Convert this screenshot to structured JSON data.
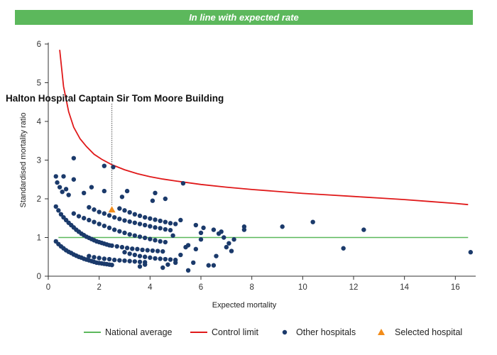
{
  "banner": {
    "text": "In line with expected rate"
  },
  "colors": {
    "banner": "#5cb85c",
    "national_average": "#5cb85c",
    "control_limit": "#e0191a",
    "other_hospitals": "#1b3a6b",
    "selected_hospital": "#f28c1a"
  },
  "chart_data": {
    "type": "scatter",
    "title": "",
    "xlabel": "Expected mortality",
    "ylabel": "Standardised mortality ratio",
    "xlim": [
      0,
      16.8
    ],
    "ylim": [
      0,
      6
    ],
    "x_ticks": [
      0,
      2,
      4,
      6,
      8,
      10,
      12,
      14,
      16
    ],
    "y_ticks": [
      0,
      1,
      2,
      3,
      4,
      5,
      6
    ],
    "grid": false,
    "legend_position": "bottom",
    "annotation": {
      "text": "Halton Hospital Captain Sir Tom Moore Building",
      "x": 2.5,
      "y": 1.72
    },
    "series": [
      {
        "name": "National average",
        "kind": "line",
        "points": [
          [
            0.4,
            1
          ],
          [
            16.5,
            1
          ]
        ]
      },
      {
        "name": "Control limit",
        "kind": "line",
        "points": [
          [
            0.45,
            5.85
          ],
          [
            0.6,
            4.9
          ],
          [
            0.8,
            4.25
          ],
          [
            1.0,
            3.85
          ],
          [
            1.25,
            3.55
          ],
          [
            1.5,
            3.35
          ],
          [
            1.8,
            3.15
          ],
          [
            2.1,
            3.02
          ],
          [
            2.5,
            2.88
          ],
          [
            3.0,
            2.75
          ],
          [
            3.5,
            2.65
          ],
          [
            4.0,
            2.57
          ],
          [
            4.5,
            2.51
          ],
          [
            5.0,
            2.46
          ],
          [
            6.0,
            2.37
          ],
          [
            7.0,
            2.3
          ],
          [
            8.0,
            2.24
          ],
          [
            9.0,
            2.19
          ],
          [
            10.0,
            2.14
          ],
          [
            11.0,
            2.1
          ],
          [
            12.0,
            2.06
          ],
          [
            13.0,
            2.02
          ],
          [
            14.0,
            1.98
          ],
          [
            15.0,
            1.93
          ],
          [
            16.0,
            1.88
          ],
          [
            16.5,
            1.85
          ]
        ]
      },
      {
        "name": "Other hospitals",
        "kind": "scatter",
        "points": [
          [
            0.3,
            2.58
          ],
          [
            0.6,
            2.58
          ],
          [
            0.35,
            2.42
          ],
          [
            0.45,
            2.3
          ],
          [
            0.7,
            2.25
          ],
          [
            1.0,
            3.05
          ],
          [
            1.0,
            2.5
          ],
          [
            0.55,
            2.18
          ],
          [
            0.8,
            2.1
          ],
          [
            1.4,
            2.15
          ],
          [
            1.7,
            2.3
          ],
          [
            2.2,
            2.85
          ],
          [
            2.55,
            2.82
          ],
          [
            2.2,
            2.2
          ],
          [
            3.1,
            2.2
          ],
          [
            2.9,
            2.05
          ],
          [
            4.2,
            2.15
          ],
          [
            4.1,
            1.95
          ],
          [
            4.6,
            2.0
          ],
          [
            5.3,
            2.4
          ],
          [
            0.3,
            1.8
          ],
          [
            0.4,
            1.7
          ],
          [
            0.5,
            1.6
          ],
          [
            0.6,
            1.52
          ],
          [
            0.7,
            1.45
          ],
          [
            0.8,
            1.38
          ],
          [
            0.9,
            1.32
          ],
          [
            1.0,
            1.26
          ],
          [
            1.1,
            1.2
          ],
          [
            1.2,
            1.15
          ],
          [
            1.3,
            1.1
          ],
          [
            1.4,
            1.06
          ],
          [
            1.5,
            1.02
          ],
          [
            1.6,
            0.99
          ],
          [
            1.7,
            0.96
          ],
          [
            1.8,
            0.93
          ],
          [
            1.9,
            0.9
          ],
          [
            2.0,
            0.88
          ],
          [
            2.1,
            0.86
          ],
          [
            2.2,
            0.84
          ],
          [
            2.3,
            0.82
          ],
          [
            2.4,
            0.8
          ],
          [
            2.5,
            0.79
          ],
          [
            2.7,
            0.77
          ],
          [
            2.9,
            0.75
          ],
          [
            3.1,
            0.73
          ],
          [
            3.3,
            0.71
          ],
          [
            3.5,
            0.7
          ],
          [
            3.7,
            0.68
          ],
          [
            3.9,
            0.67
          ],
          [
            4.1,
            0.66
          ],
          [
            4.3,
            0.65
          ],
          [
            4.5,
            0.64
          ],
          [
            0.3,
            0.9
          ],
          [
            0.4,
            0.83
          ],
          [
            0.5,
            0.77
          ],
          [
            0.6,
            0.72
          ],
          [
            0.7,
            0.67
          ],
          [
            0.8,
            0.63
          ],
          [
            0.9,
            0.6
          ],
          [
            1.0,
            0.56
          ],
          [
            1.1,
            0.53
          ],
          [
            1.2,
            0.5
          ],
          [
            1.3,
            0.48
          ],
          [
            1.4,
            0.45
          ],
          [
            1.5,
            0.43
          ],
          [
            1.6,
            0.41
          ],
          [
            1.7,
            0.39
          ],
          [
            1.8,
            0.37
          ],
          [
            1.9,
            0.35
          ],
          [
            2.0,
            0.34
          ],
          [
            2.1,
            0.33
          ],
          [
            2.2,
            0.32
          ],
          [
            2.3,
            0.31
          ],
          [
            2.4,
            0.3
          ],
          [
            2.5,
            0.29
          ],
          [
            1.0,
            1.62
          ],
          [
            1.2,
            1.55
          ],
          [
            1.4,
            1.5
          ],
          [
            1.6,
            1.45
          ],
          [
            1.8,
            1.4
          ],
          [
            2.0,
            1.35
          ],
          [
            2.2,
            1.3
          ],
          [
            2.4,
            1.25
          ],
          [
            2.6,
            1.2
          ],
          [
            2.8,
            1.16
          ],
          [
            3.0,
            1.12
          ],
          [
            3.2,
            1.08
          ],
          [
            3.4,
            1.05
          ],
          [
            3.6,
            1.02
          ],
          [
            3.8,
            0.99
          ],
          [
            4.0,
            0.96
          ],
          [
            4.2,
            0.93
          ],
          [
            4.4,
            0.9
          ],
          [
            4.6,
            0.88
          ],
          [
            1.6,
            1.78
          ],
          [
            1.8,
            1.72
          ],
          [
            2.0,
            1.66
          ],
          [
            2.2,
            1.62
          ],
          [
            2.4,
            1.57
          ],
          [
            2.6,
            1.52
          ],
          [
            2.8,
            1.48
          ],
          [
            3.0,
            1.44
          ],
          [
            3.2,
            1.41
          ],
          [
            3.4,
            1.38
          ],
          [
            3.6,
            1.35
          ],
          [
            3.8,
            1.32
          ],
          [
            4.0,
            1.29
          ],
          [
            4.2,
            1.26
          ],
          [
            4.4,
            1.24
          ],
          [
            4.6,
            1.21
          ],
          [
            4.8,
            1.19
          ],
          [
            1.6,
            0.52
          ],
          [
            1.8,
            0.49
          ],
          [
            2.0,
            0.47
          ],
          [
            2.2,
            0.45
          ],
          [
            2.4,
            0.44
          ],
          [
            2.6,
            0.42
          ],
          [
            2.8,
            0.41
          ],
          [
            3.0,
            0.4
          ],
          [
            3.2,
            0.39
          ],
          [
            3.4,
            0.38
          ],
          [
            3.6,
            0.37
          ],
          [
            3.8,
            0.36
          ],
          [
            3.0,
            0.62
          ],
          [
            3.2,
            0.58
          ],
          [
            3.4,
            0.55
          ],
          [
            3.6,
            0.52
          ],
          [
            3.8,
            0.5
          ],
          [
            4.0,
            0.48
          ],
          [
            4.2,
            0.46
          ],
          [
            4.4,
            0.45
          ],
          [
            4.6,
            0.44
          ],
          [
            4.8,
            0.43
          ],
          [
            5.0,
            0.42
          ],
          [
            2.8,
            1.75
          ],
          [
            3.0,
            1.7
          ],
          [
            3.2,
            1.65
          ],
          [
            3.4,
            1.6
          ],
          [
            3.6,
            1.56
          ],
          [
            3.8,
            1.52
          ],
          [
            4.0,
            1.49
          ],
          [
            4.2,
            1.46
          ],
          [
            4.4,
            1.43
          ],
          [
            4.6,
            1.4
          ],
          [
            4.8,
            1.37
          ],
          [
            5.0,
            1.35
          ],
          [
            3.8,
            0.3
          ],
          [
            3.6,
            0.25
          ],
          [
            4.5,
            0.22
          ],
          [
            4.7,
            0.3
          ],
          [
            5.0,
            0.35
          ],
          [
            5.2,
            0.55
          ],
          [
            5.4,
            0.75
          ],
          [
            5.5,
            0.15
          ],
          [
            5.7,
            0.35
          ],
          [
            5.8,
            0.7
          ],
          [
            6.0,
            0.95
          ],
          [
            6.1,
            1.25
          ],
          [
            6.3,
            0.28
          ],
          [
            6.5,
            0.28
          ],
          [
            6.6,
            0.52
          ],
          [
            6.5,
            1.2
          ],
          [
            6.7,
            1.1
          ],
          [
            6.8,
            1.15
          ],
          [
            6.9,
            1.0
          ],
          [
            7.0,
            0.75
          ],
          [
            7.1,
            0.85
          ],
          [
            7.2,
            0.65
          ],
          [
            7.3,
            0.95
          ],
          [
            7.7,
            1.2
          ],
          [
            7.7,
            1.28
          ],
          [
            4.9,
            1.05
          ],
          [
            5.8,
            1.32
          ],
          [
            6.0,
            1.12
          ],
          [
            5.2,
            1.45
          ],
          [
            5.5,
            0.8
          ],
          [
            9.2,
            1.28
          ],
          [
            10.4,
            1.4
          ],
          [
            11.6,
            0.72
          ],
          [
            12.4,
            1.2
          ],
          [
            16.6,
            0.62
          ]
        ]
      },
      {
        "name": "Selected hospital",
        "kind": "marker",
        "points": [
          [
            2.5,
            1.72
          ]
        ]
      }
    ]
  }
}
